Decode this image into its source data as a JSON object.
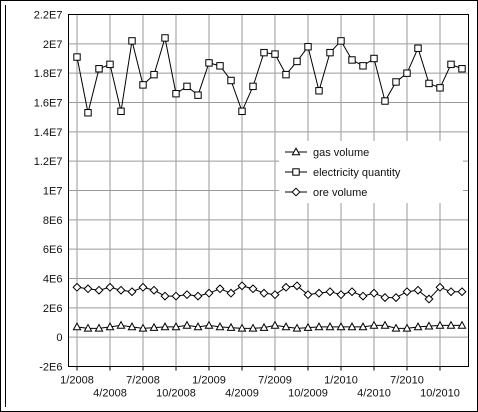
{
  "chart_data": {
    "type": "line",
    "title": "",
    "xlabel": "",
    "ylabel": "",
    "x": [
      "1/2008",
      "2/2008",
      "3/2008",
      "4/2008",
      "5/2008",
      "6/2008",
      "7/2008",
      "8/2008",
      "9/2008",
      "10/2008",
      "11/2008",
      "12/2008",
      "1/2009",
      "2/2009",
      "3/2009",
      "4/2009",
      "5/2009",
      "6/2009",
      "7/2009",
      "8/2009",
      "9/2009",
      "10/2009",
      "11/2009",
      "12/2009",
      "1/2010",
      "2/2010",
      "3/2010",
      "4/2010",
      "5/2010",
      "6/2010",
      "7/2010",
      "8/2010",
      "9/2010",
      "10/2010",
      "11/2010",
      "12/2010"
    ],
    "x_tick_labels": [
      "1/2008",
      "4/2008",
      "7/2008",
      "10/2008",
      "1/2009",
      "4/2009",
      "7/2009",
      "10/2009",
      "1/2010",
      "4/2010",
      "7/2010",
      "10/2010"
    ],
    "y_tick_labels": [
      "-2E6",
      "0",
      "2E6",
      "4E6",
      "6E6",
      "8E6",
      "1E7",
      "1.2E7",
      "1.4E7",
      "1.6E7",
      "1.8E7",
      "2E7",
      "2.2E7"
    ],
    "ylim": [
      -2000000,
      22000000
    ],
    "grid": true,
    "legend_position": "center-right",
    "series": [
      {
        "name": "gas volume",
        "marker": "triangle",
        "color": "#000000",
        "values": [
          700000,
          600000,
          600000,
          700000,
          800000,
          700000,
          600000,
          650000,
          700000,
          700000,
          800000,
          700000,
          800000,
          700000,
          650000,
          600000,
          600000,
          650000,
          800000,
          700000,
          600000,
          650000,
          700000,
          700000,
          700000,
          700000,
          700000,
          800000,
          800000,
          600000,
          600000,
          700000,
          750000,
          800000,
          800000,
          800000
        ]
      },
      {
        "name": "electricity quantity",
        "marker": "square",
        "color": "#000000",
        "values": [
          19100000,
          15300000,
          18300000,
          18600000,
          15400000,
          20200000,
          17200000,
          17900000,
          20400000,
          16600000,
          17100000,
          16500000,
          18700000,
          18500000,
          17500000,
          15400000,
          17100000,
          19400000,
          19300000,
          17900000,
          18800000,
          19800000,
          16800000,
          19400000,
          20200000,
          18900000,
          18500000,
          19000000,
          16100000,
          17400000,
          18000000,
          19700000,
          17300000,
          17000000,
          18600000,
          18300000
        ]
      },
      {
        "name": "ore volume",
        "marker": "diamond",
        "color": "#000000",
        "values": [
          3400000,
          3300000,
          3200000,
          3400000,
          3200000,
          3100000,
          3400000,
          3200000,
          2800000,
          2800000,
          2900000,
          2800000,
          3000000,
          3300000,
          3000000,
          3500000,
          3300000,
          3000000,
          2900000,
          3400000,
          3500000,
          2900000,
          3000000,
          3100000,
          2900000,
          3100000,
          2800000,
          3000000,
          2700000,
          2700000,
          3100000,
          3200000,
          2600000,
          3400000,
          3100000,
          3100000
        ]
      }
    ]
  }
}
